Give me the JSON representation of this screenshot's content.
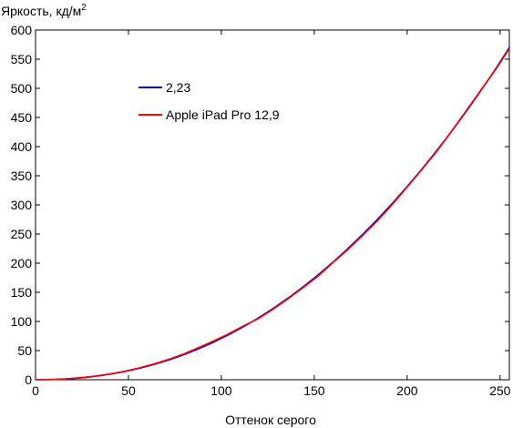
{
  "chart_data": {
    "type": "line",
    "title": "",
    "ylabel": "Яркость, кд/м",
    "ylabel_sup": "2",
    "xlabel": "Оттенок серого",
    "xlim": [
      0,
      255
    ],
    "ylim": [
      0,
      600
    ],
    "xticks": [
      0,
      50,
      100,
      150,
      200,
      250
    ],
    "yticks": [
      0,
      50,
      100,
      150,
      200,
      250,
      300,
      350,
      400,
      450,
      500,
      550,
      600
    ],
    "grid": false,
    "legend_position": "top-left",
    "series": [
      {
        "name": "2,23",
        "color": "#0000cc",
        "x": [
          0,
          8,
          16,
          24,
          32,
          40,
          48,
          56,
          64,
          72,
          80,
          88,
          96,
          104,
          112,
          120,
          128,
          136,
          144,
          152,
          160,
          168,
          176,
          184,
          192,
          200,
          208,
          216,
          224,
          232,
          240,
          248,
          255
        ],
        "y": [
          0,
          0.2,
          1.2,
          3.1,
          5.8,
          9.4,
          14.1,
          19.7,
          26.4,
          34.2,
          43.2,
          53.4,
          64.7,
          77.3,
          91.1,
          106.2,
          122.6,
          140.3,
          159.3,
          179.7,
          201.5,
          224.6,
          249.2,
          275.1,
          302.5,
          331.4,
          361.7,
          393.4,
          426.6,
          461.3,
          497.6,
          535.3,
          570.0
        ]
      },
      {
        "name": "Apple iPad Pro 12,9",
        "color": "#ff0000",
        "x": [
          0,
          8,
          16,
          24,
          32,
          40,
          48,
          56,
          64,
          72,
          80,
          88,
          96,
          104,
          112,
          120,
          128,
          136,
          144,
          152,
          160,
          168,
          176,
          184,
          192,
          200,
          208,
          216,
          224,
          232,
          240,
          248,
          255
        ],
        "y": [
          0,
          0.3,
          1.4,
          3.4,
          6.2,
          9.9,
          14.6,
          20.5,
          27.4,
          35.3,
          44.6,
          55.5,
          66.8,
          78.9,
          92.5,
          105.0,
          121.4,
          139.2,
          158.0,
          177.7,
          200.7,
          223.0,
          247.5,
          272.8,
          300.7,
          330.5,
          360.9,
          392.0,
          427.0,
          462.5,
          498.5,
          534.0,
          568.0
        ]
      }
    ]
  }
}
